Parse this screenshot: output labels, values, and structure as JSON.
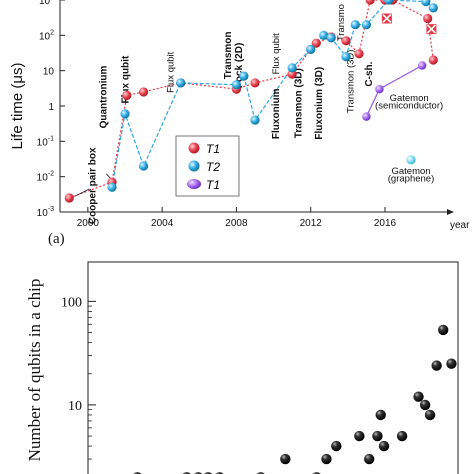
{
  "chart_data": [
    {
      "type": "scatter",
      "title": "",
      "ylabel": "Life time (μs)",
      "xlabel": "year",
      "panel_label": "(a)",
      "log_y": true,
      "xlim": [
        1998.5,
        2019.5
      ],
      "ylim": [
        0.001,
        1000
      ],
      "x_ticks": [
        2000,
        2004,
        2008,
        2012,
        2016
      ],
      "y_ticks": [
        {
          "v": 0.001,
          "base": "10",
          "exp": "-3"
        },
        {
          "v": 0.01,
          "base": "10",
          "exp": "-2"
        },
        {
          "v": 0.1,
          "base": "10",
          "exp": "-1"
        },
        {
          "v": 1,
          "base": "1",
          "exp": ""
        },
        {
          "v": 10,
          "base": "10",
          "exp": ""
        },
        {
          "v": 100,
          "base": "10",
          "exp": "2"
        },
        {
          "v": 1000,
          "base": "10",
          "exp": "3"
        }
      ],
      "legend": [
        "T1",
        "T2",
        "T1"
      ],
      "series": [
        {
          "name": "T1",
          "color": "#e53946",
          "style": "dotted",
          "points": [
            [
              1999.0,
              0.0025
            ],
            [
              2001.3,
              0.007
            ],
            [
              2002.1,
              2.0
            ],
            [
              2003.0,
              2.5
            ],
            [
              2005.0,
              4.5
            ],
            [
              2008.0,
              3.0
            ],
            [
              2009.0,
              4.5
            ],
            [
              2011.0,
              8.0
            ],
            [
              2012.0,
              40
            ],
            [
              2012.3,
              60
            ],
            [
              2013.1,
              90
            ],
            [
              2013.9,
              70
            ],
            [
              2014.6,
              30
            ],
            [
              2015.2,
              1000
            ],
            [
              2016.0,
              1000
            ],
            [
              2016.4,
              1000
            ],
            [
              2018.3,
              300
            ],
            [
              2018.6,
              20
            ]
          ]
        },
        {
          "name": "T2",
          "color": "#2ea6e0",
          "style": "dashed",
          "points": [
            [
              2001.3,
              0.005
            ],
            [
              2002.0,
              0.6
            ],
            [
              2003.0,
              0.02
            ],
            [
              2005.0,
              4.5
            ],
            [
              2008.0,
              4.0
            ],
            [
              2008.4,
              7
            ],
            [
              2009.0,
              0.4
            ],
            [
              2011.0,
              12
            ],
            [
              2012.0,
              40
            ],
            [
              2012.7,
              100
            ],
            [
              2013.1,
              85
            ],
            [
              2013.9,
              25
            ],
            [
              2014.4,
              200
            ],
            [
              2015.0,
              200
            ],
            [
              2016.2,
              1000
            ],
            [
              2018.2,
              900
            ],
            [
              2018.6,
              600
            ]
          ]
        },
        {
          "name": "Gatemon (semiconductor)",
          "color": "#9a55ea",
          "style": "solid",
          "points": [
            [
              2015.0,
              0.5
            ],
            [
              2015.7,
              3
            ],
            [
              2018.0,
              14
            ]
          ]
        }
      ],
      "cross_markers": [
        [
          2016.1,
          300
        ],
        [
          2018.5,
          150
        ]
      ],
      "extra_points": [
        {
          "x": 2017.4,
          "y": 0.03,
          "color": "#6fd6f0"
        }
      ],
      "annotations": [
        {
          "text": "Cooper pair box",
          "x": 2000.4,
          "y": 0.0055,
          "rot": -90,
          "bold": true
        },
        {
          "text": "Quantronium",
          "x": 2001.0,
          "y": 1.8,
          "rot": -90,
          "bold": true
        },
        {
          "text": "Flux qubit",
          "x": 2002.2,
          "y": 5.6,
          "rot": -90,
          "bold": true
        },
        {
          "text": "Flux qubit",
          "x": 2004.6,
          "y": 9,
          "rot": -90,
          "bold": false
        },
        {
          "text": "Transmon",
          "x": 2007.7,
          "y": 27,
          "rot": -90,
          "bold": true
        },
        {
          "text": "Fock (2D)",
          "x": 2008.3,
          "y": 14,
          "rot": -90,
          "bold": true
        },
        {
          "text": "Flux qubit",
          "x": 2010.3,
          "y": 30,
          "rot": -90,
          "bold": false
        },
        {
          "text": "Fluxonium",
          "x": 2010.3,
          "y": 0.6,
          "rot": -90,
          "bold": true
        },
        {
          "text": "Transmon (3D)",
          "x": 2011.5,
          "y": 1.2,
          "rot": -90,
          "bold": true
        },
        {
          "text": "Fluxonium (3D)",
          "x": 2012.6,
          "y": 1.2,
          "rot": -90,
          "bold": true
        },
        {
          "text": "Transmon (3D)",
          "x": 2014.3,
          "y": 5,
          "rot": -90,
          "bold": false
        },
        {
          "text": "C-sh.",
          "x": 2015.3,
          "y": 8,
          "rot": -90,
          "bold": true
        },
        {
          "text": "Transmo",
          "x": 2013.8,
          "y": 230,
          "rot": -90,
          "bold": false
        },
        {
          "text": "Gatemon",
          "x": 2017.3,
          "y": 1.4,
          "rot": 0,
          "bold": false
        },
        {
          "text": "(semiconductor)",
          "x": 2017.3,
          "y": 0.85,
          "rot": 0,
          "bold": false
        },
        {
          "text": "Gatemon",
          "x": 2017.4,
          "y": 0.012,
          "rot": 0,
          "bold": false
        },
        {
          "text": "(graphene)",
          "x": 2017.4,
          "y": 0.0072,
          "rot": 0,
          "bold": false
        }
      ]
    },
    {
      "type": "scatter",
      "title": "",
      "ylabel": "Number of qubits in a chip",
      "xlabel": "",
      "log_y": true,
      "xlim": [
        1997.5,
        2020.0
      ],
      "ylim": [
        1.8,
        240
      ],
      "y_ticks": [
        {
          "v": 10,
          "label": "10"
        },
        {
          "v": 100,
          "label": "100"
        }
      ],
      "points": [
        [
          2000.5,
          2
        ],
        [
          2003.5,
          2
        ],
        [
          2004.2,
          2
        ],
        [
          2004.8,
          2
        ],
        [
          2005.5,
          2
        ],
        [
          2008.0,
          2
        ],
        [
          2009.5,
          3
        ],
        [
          2011.4,
          2
        ],
        [
          2012.0,
          3
        ],
        [
          2012.6,
          4
        ],
        [
          2014.0,
          5
        ],
        [
          2014.6,
          3
        ],
        [
          2015.1,
          5
        ],
        [
          2015.3,
          8
        ],
        [
          2015.5,
          4
        ],
        [
          2016.6,
          5
        ],
        [
          2017.6,
          12
        ],
        [
          2018.0,
          10
        ],
        [
          2018.3,
          8
        ],
        [
          2018.7,
          24
        ],
        [
          2019.1,
          53
        ],
        [
          2019.6,
          25
        ]
      ]
    }
  ]
}
